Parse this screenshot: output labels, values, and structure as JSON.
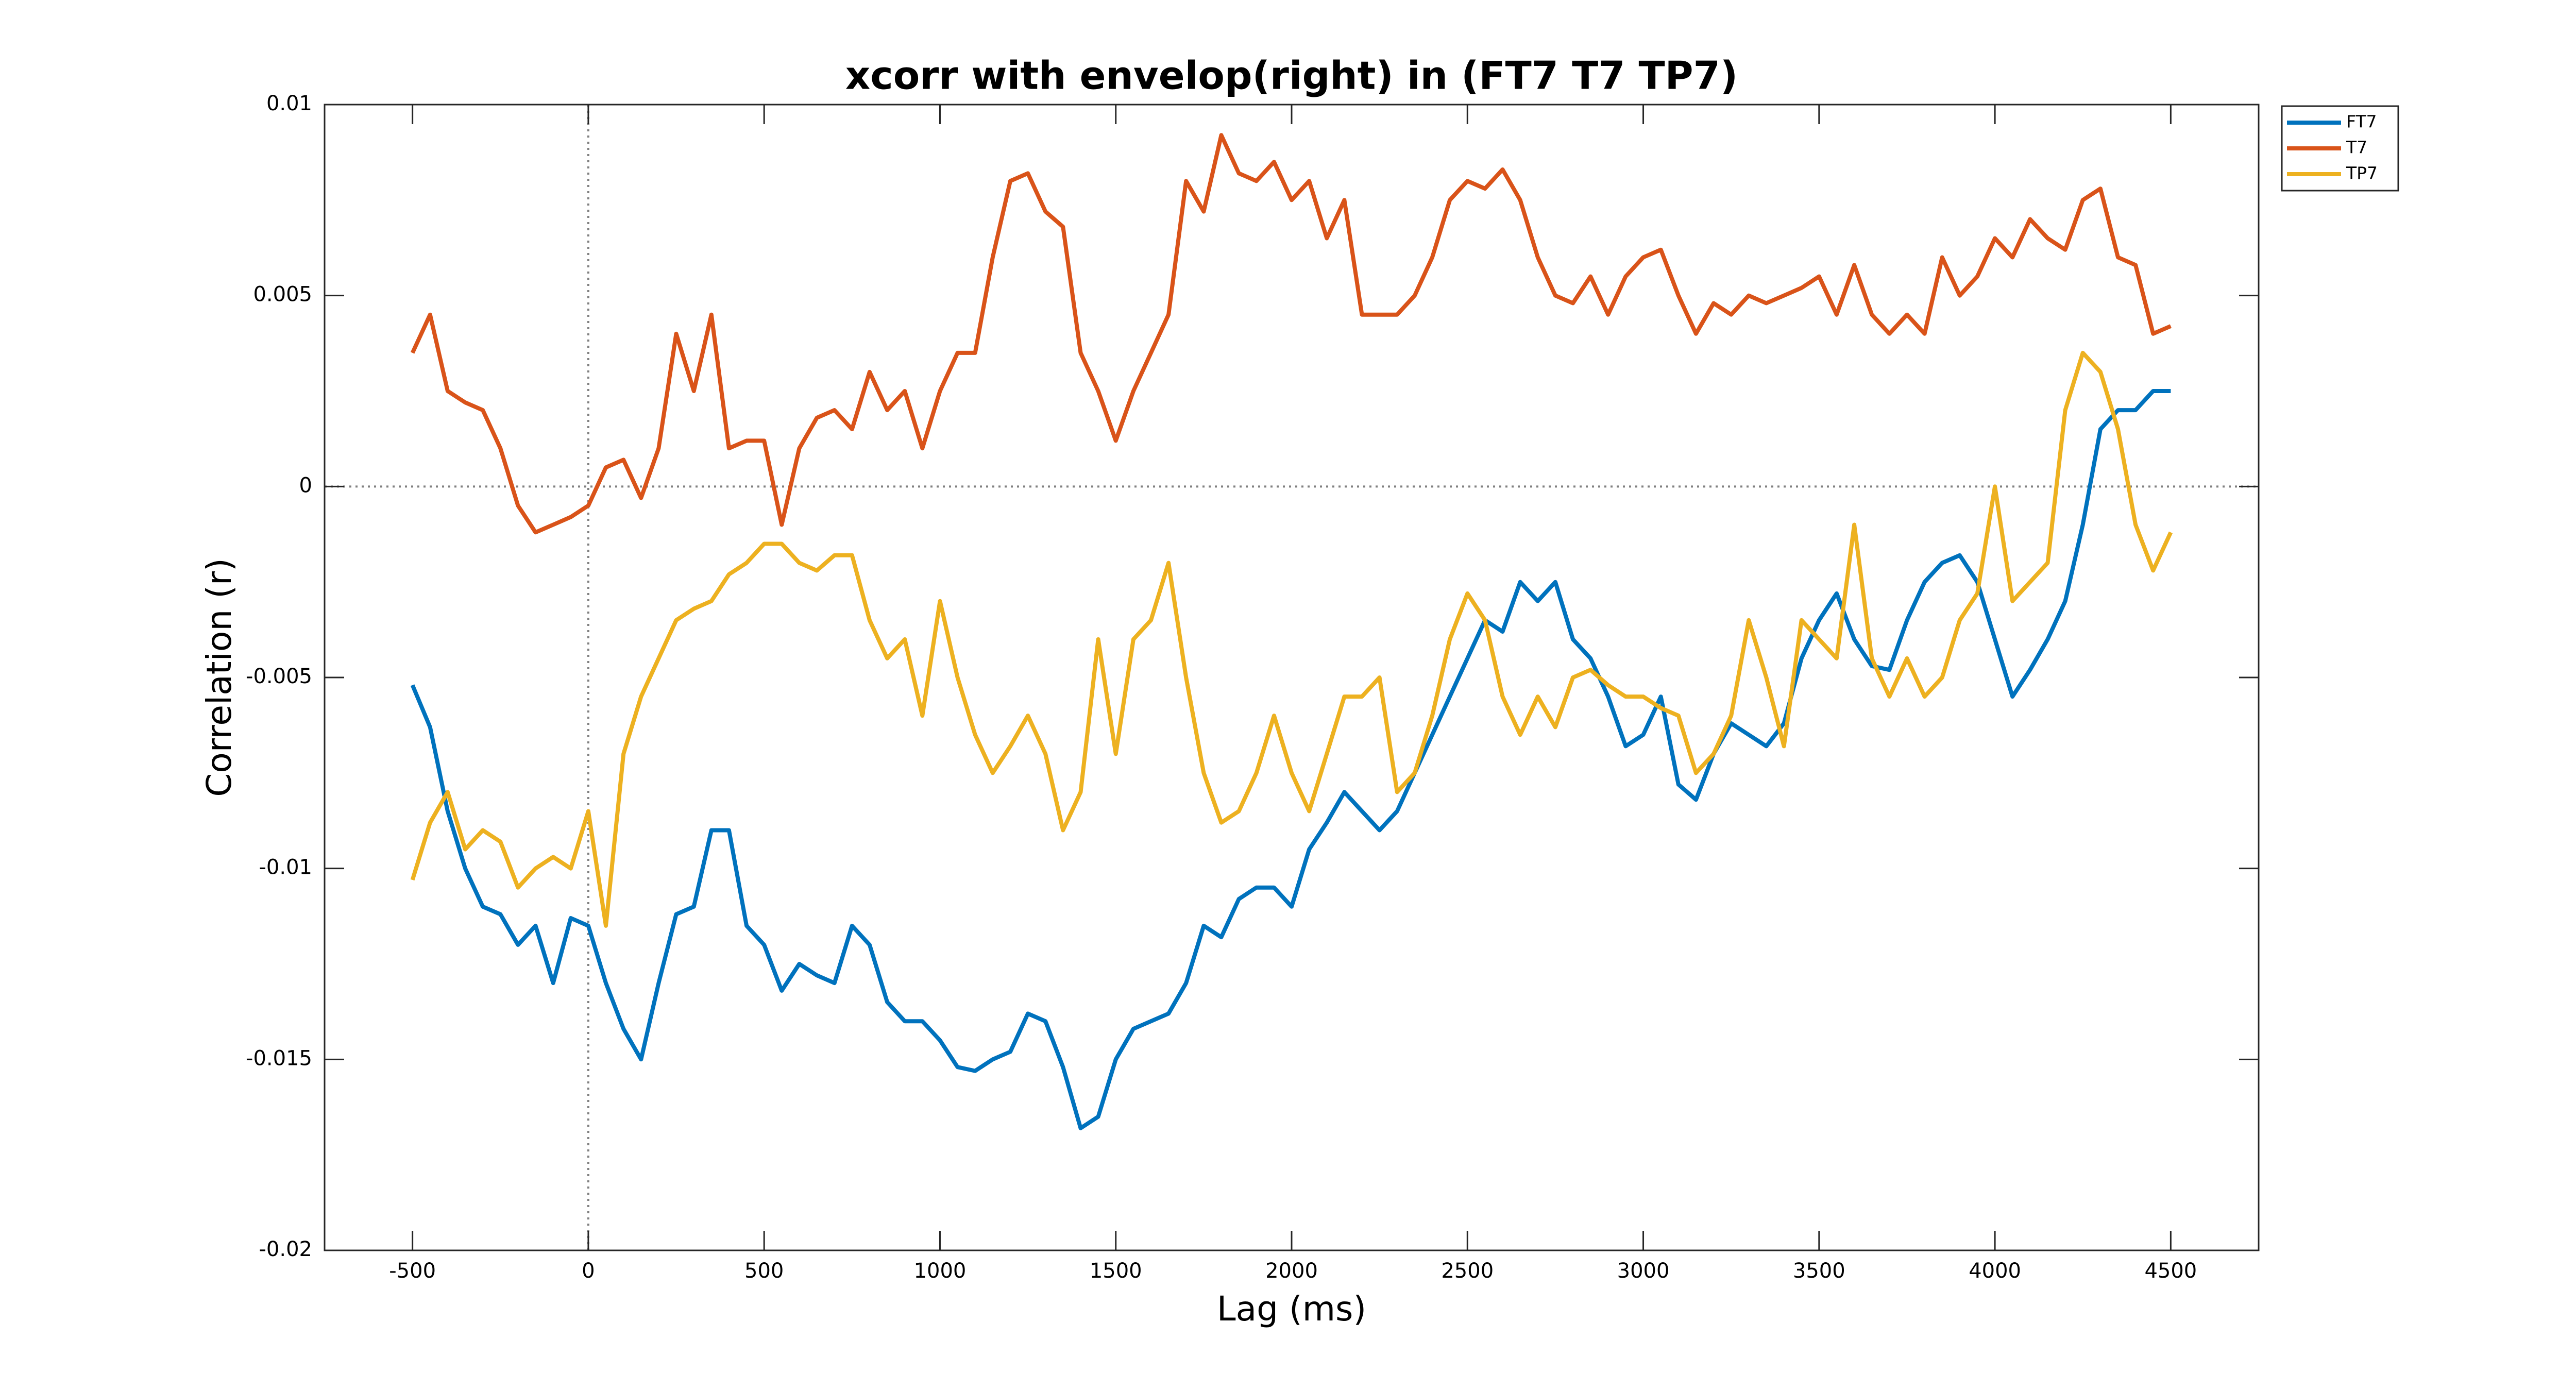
{
  "chart_data": {
    "type": "line",
    "title": "xcorr with envelop(right) in (FT7 T7 TP7)",
    "xlabel": "Lag (ms)",
    "ylabel": "Correlation (r)",
    "x": [
      -500,
      -450,
      -400,
      -350,
      -300,
      -250,
      -200,
      -150,
      -100,
      -50,
      0,
      50,
      100,
      150,
      200,
      250,
      300,
      350,
      400,
      450,
      500,
      550,
      600,
      650,
      700,
      750,
      800,
      850,
      900,
      950,
      1000,
      1050,
      1100,
      1150,
      1200,
      1250,
      1300,
      1350,
      1400,
      1450,
      1500,
      1550,
      1600,
      1650,
      1700,
      1750,
      1800,
      1850,
      1900,
      1950,
      2000,
      2050,
      2100,
      2150,
      2200,
      2250,
      2300,
      2350,
      2400,
      2450,
      2500,
      2550,
      2600,
      2650,
      2700,
      2750,
      2800,
      2850,
      2900,
      2950,
      3000,
      3050,
      3100,
      3150,
      3200,
      3250,
      3300,
      3350,
      3400,
      3450,
      3500,
      3550,
      3600,
      3650,
      3700,
      3750,
      3800,
      3850,
      3900,
      3950,
      4000,
      4050,
      4100,
      4150,
      4200,
      4250,
      4300,
      4350,
      4400,
      4450,
      4500
    ],
    "series": [
      {
        "name": "FT7",
        "color": "#0072bd",
        "values": [
          -0.0052,
          -0.0063,
          -0.0085,
          -0.01,
          -0.011,
          -0.0112,
          -0.012,
          -0.0115,
          -0.013,
          -0.0113,
          -0.0115,
          -0.013,
          -0.0142,
          -0.015,
          -0.013,
          -0.0112,
          -0.011,
          -0.009,
          -0.009,
          -0.0115,
          -0.012,
          -0.0132,
          -0.0125,
          -0.0128,
          -0.013,
          -0.0115,
          -0.012,
          -0.0135,
          -0.014,
          -0.014,
          -0.0145,
          -0.0152,
          -0.0153,
          -0.015,
          -0.0148,
          -0.0138,
          -0.014,
          -0.0152,
          -0.0168,
          -0.0165,
          -0.015,
          -0.0142,
          -0.014,
          -0.0138,
          -0.013,
          -0.0115,
          -0.0118,
          -0.0108,
          -0.0105,
          -0.0105,
          -0.011,
          -0.0095,
          -0.0088,
          -0.008,
          -0.0085,
          -0.009,
          -0.0085,
          -0.0075,
          -0.0065,
          -0.0055,
          -0.0045,
          -0.0035,
          -0.0038,
          -0.0025,
          -0.003,
          -0.0025,
          -0.004,
          -0.0045,
          -0.0055,
          -0.0068,
          -0.0065,
          -0.0055,
          -0.0078,
          -0.0082,
          -0.007,
          -0.0062,
          -0.0065,
          -0.0068,
          -0.0062,
          -0.0045,
          -0.0035,
          -0.0028,
          -0.004,
          -0.0047,
          -0.0048,
          -0.0035,
          -0.0025,
          -0.002,
          -0.0018,
          -0.0025,
          -0.004,
          -0.0055,
          -0.0048,
          -0.004,
          -0.003,
          -0.001,
          0.0015,
          0.002,
          0.002,
          0.0025,
          0.0025
        ]
      },
      {
        "name": "T7",
        "color": "#d95319",
        "values": [
          0.0035,
          0.0045,
          0.0025,
          0.0022,
          0.002,
          0.001,
          -0.0005,
          -0.0012,
          -0.001,
          -0.0008,
          -0.0005,
          0.0005,
          0.0007,
          -0.0003,
          0.001,
          0.004,
          0.0025,
          0.0045,
          0.001,
          0.0012,
          0.0012,
          -0.001,
          0.001,
          0.0018,
          0.002,
          0.0015,
          0.003,
          0.002,
          0.0025,
          0.001,
          0.0025,
          0.0035,
          0.0035,
          0.006,
          0.008,
          0.0082,
          0.0072,
          0.0068,
          0.0035,
          0.0025,
          0.0012,
          0.0025,
          0.0035,
          0.0045,
          0.008,
          0.0072,
          0.0092,
          0.0082,
          0.008,
          0.0085,
          0.0075,
          0.008,
          0.0065,
          0.0075,
          0.0045,
          0.0045,
          0.0045,
          0.005,
          0.006,
          0.0075,
          0.008,
          0.0078,
          0.0083,
          0.0075,
          0.006,
          0.005,
          0.0048,
          0.0055,
          0.0045,
          0.0055,
          0.006,
          0.0062,
          0.005,
          0.004,
          0.0048,
          0.0045,
          0.005,
          0.0048,
          0.005,
          0.0052,
          0.0055,
          0.0045,
          0.0058,
          0.0045,
          0.004,
          0.0045,
          0.004,
          0.006,
          0.005,
          0.0055,
          0.0065,
          0.006,
          0.007,
          0.0065,
          0.0062,
          0.0075,
          0.0078,
          0.006,
          0.0058,
          0.004,
          0.0042
        ]
      },
      {
        "name": "TP7",
        "color": "#edb120",
        "values": [
          -0.0103,
          -0.0088,
          -0.008,
          -0.0095,
          -0.009,
          -0.0093,
          -0.0105,
          -0.01,
          -0.0097,
          -0.01,
          -0.0085,
          -0.0115,
          -0.007,
          -0.0055,
          -0.0045,
          -0.0035,
          -0.0032,
          -0.003,
          -0.0023,
          -0.002,
          -0.0015,
          -0.0015,
          -0.002,
          -0.0022,
          -0.0018,
          -0.0018,
          -0.0035,
          -0.0045,
          -0.004,
          -0.006,
          -0.003,
          -0.005,
          -0.0065,
          -0.0075,
          -0.0068,
          -0.006,
          -0.007,
          -0.009,
          -0.008,
          -0.004,
          -0.007,
          -0.004,
          -0.0035,
          -0.002,
          -0.005,
          -0.0075,
          -0.0088,
          -0.0085,
          -0.0075,
          -0.006,
          -0.0075,
          -0.0085,
          -0.007,
          -0.0055,
          -0.0055,
          -0.005,
          -0.008,
          -0.0075,
          -0.006,
          -0.004,
          -0.0028,
          -0.0035,
          -0.0055,
          -0.0065,
          -0.0055,
          -0.0063,
          -0.005,
          -0.0048,
          -0.0052,
          -0.0055,
          -0.0055,
          -0.0058,
          -0.006,
          -0.0075,
          -0.007,
          -0.006,
          -0.0035,
          -0.005,
          -0.0068,
          -0.0035,
          -0.004,
          -0.0045,
          -0.001,
          -0.0045,
          -0.0055,
          -0.0045,
          -0.0055,
          -0.005,
          -0.0035,
          -0.0028,
          0,
          -0.003,
          -0.0025,
          -0.002,
          0.002,
          0.0035,
          0.003,
          0.0015,
          -0.001,
          -0.0022,
          -0.0012
        ]
      }
    ],
    "xlim": [
      -750,
      4750
    ],
    "xticks": [
      -500,
      0,
      500,
      1000,
      1500,
      2000,
      2500,
      3000,
      3500,
      4000,
      4500
    ],
    "ylim": [
      -0.02,
      0.01
    ],
    "yticks": [
      -0.02,
      -0.015,
      -0.01,
      -0.005,
      0,
      0.005,
      0.01
    ],
    "zero_lines": true,
    "legend": "northeast outside"
  }
}
